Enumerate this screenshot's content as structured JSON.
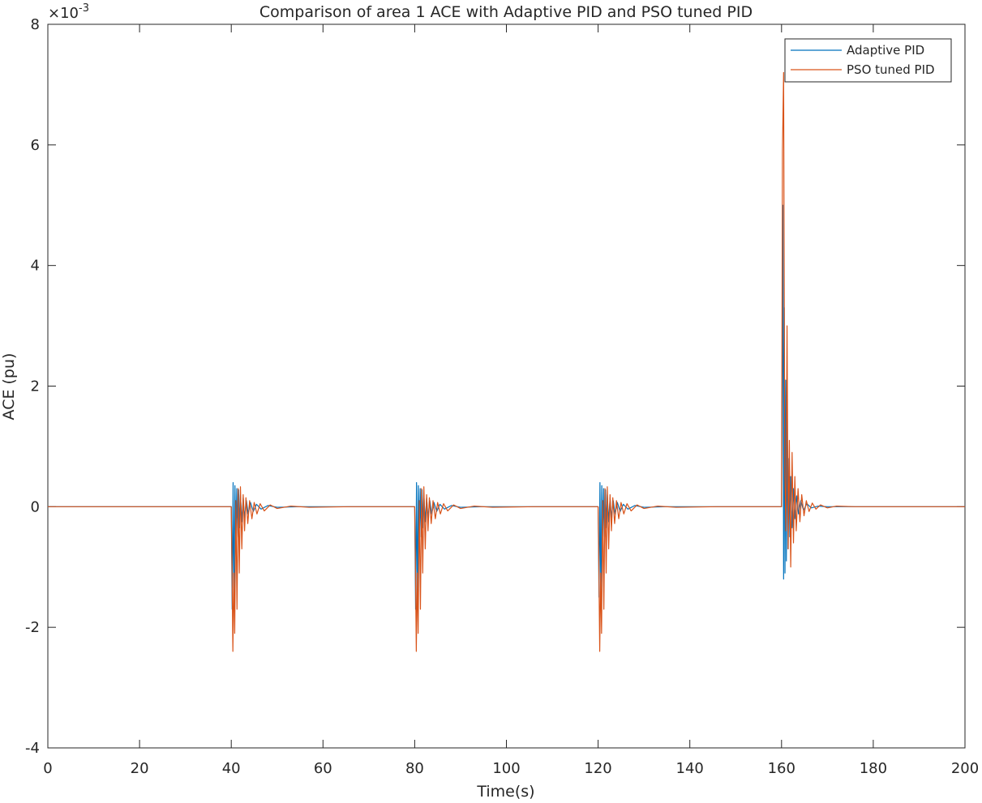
{
  "chart_data": {
    "type": "line",
    "title": "Comparison of area 1 ACE with Adaptive PID and PSO tuned PID",
    "xlabel": "Time(s)",
    "ylabel": "ACE (pu)",
    "y_exponent_label": "×10",
    "y_exponent": "-3",
    "xlim": [
      0,
      200
    ],
    "ylim": [
      -0.004,
      0.008
    ],
    "xticks": [
      "0",
      "20",
      "40",
      "60",
      "80",
      "100",
      "120",
      "140",
      "160",
      "180",
      "200"
    ],
    "yticks": [
      "-4",
      "-2",
      "0",
      "2",
      "4",
      "6",
      "8"
    ],
    "legend_position": "top-right",
    "grid": false,
    "series": [
      {
        "name": "Adaptive PID",
        "color": "#0072BD",
        "x": [
          0,
          40,
          40.2,
          40.4,
          40.6,
          40.8,
          41.0,
          41.2,
          41.4,
          41.6,
          41.8,
          42.0,
          42.3,
          42.6,
          42.9,
          43.3,
          43.7,
          44.2,
          44.8,
          45.5,
          46.5,
          48,
          50,
          55,
          66,
          80,
          80.2,
          80.4,
          80.6,
          80.8,
          81.0,
          81.2,
          81.4,
          81.6,
          81.8,
          82.0,
          82.3,
          82.6,
          82.9,
          83.3,
          83.7,
          84.2,
          84.8,
          85.5,
          86.5,
          88,
          90,
          95,
          106,
          120,
          120.2,
          120.4,
          120.6,
          120.8,
          121.0,
          121.2,
          121.4,
          121.6,
          121.8,
          122.0,
          122.3,
          122.6,
          122.9,
          123.3,
          123.7,
          124.2,
          124.8,
          125.5,
          126.5,
          128,
          130,
          135,
          146,
          160,
          160.15,
          160.3,
          160.45,
          160.6,
          160.75,
          160.9,
          161.05,
          161.2,
          161.4,
          161.6,
          161.8,
          162.0,
          162.3,
          162.6,
          162.9,
          163.3,
          163.7,
          164.2,
          164.8,
          165.5,
          166.5,
          168,
          170,
          175,
          188,
          200
        ],
        "y": [
          0,
          0,
          -0.0017,
          0.0004,
          -0.0016,
          0.00035,
          -0.0007,
          0.0003,
          -0.0005,
          0.00028,
          -0.00035,
          0.0002,
          -0.00025,
          0.00015,
          -0.00018,
          0.0001,
          -0.00012,
          7e-05,
          -8e-05,
          4e-05,
          -4e-05,
          2e-05,
          -1e-05,
          0,
          0,
          0,
          -0.0017,
          0.0004,
          -0.0016,
          0.00035,
          -0.0007,
          0.0003,
          -0.0005,
          0.00028,
          -0.00035,
          0.0002,
          -0.00025,
          0.00015,
          -0.00018,
          0.0001,
          -0.00012,
          7e-05,
          -8e-05,
          4e-05,
          -4e-05,
          2e-05,
          -1e-05,
          0,
          0,
          0,
          -0.0015,
          0.0004,
          -0.0016,
          0.00035,
          -0.0007,
          0.0003,
          -0.0005,
          0.00028,
          -0.00035,
          0.0002,
          -0.00025,
          0.00015,
          -0.00018,
          0.0001,
          -0.00012,
          7e-05,
          -8e-05,
          4e-05,
          -4e-05,
          2e-05,
          -1e-05,
          0,
          0,
          0,
          0.0022,
          0.005,
          -0.0012,
          0.0033,
          -0.0011,
          0.0021,
          -0.0009,
          0.0015,
          -0.0007,
          0.0008,
          -0.0005,
          0.0005,
          -0.00035,
          0.0003,
          -0.0002,
          0.00018,
          -0.00012,
          0.0001,
          -6e-05,
          5e-05,
          -2e-05,
          1e-05,
          0,
          0,
          0,
          0
        ]
      },
      {
        "name": "PSO tuned PID",
        "color": "#D95319",
        "x": [
          0,
          40,
          40.15,
          40.35,
          40.55,
          40.75,
          41.0,
          41.25,
          41.5,
          41.75,
          42.0,
          42.3,
          42.6,
          42.9,
          43.2,
          43.6,
          44.0,
          44.5,
          45.0,
          45.6,
          46.3,
          47.2,
          48.5,
          50,
          53,
          57,
          66,
          80,
          80.15,
          80.35,
          80.55,
          80.75,
          81.0,
          81.25,
          81.5,
          81.75,
          82.0,
          82.3,
          82.6,
          82.9,
          83.2,
          83.6,
          84.0,
          84.5,
          85.0,
          85.6,
          86.3,
          87.2,
          88.5,
          90,
          93,
          97,
          106,
          120,
          120.15,
          120.35,
          120.55,
          120.75,
          121.0,
          121.25,
          121.5,
          121.75,
          122.0,
          122.3,
          122.6,
          122.9,
          123.2,
          123.6,
          124.0,
          124.5,
          125.0,
          125.6,
          126.3,
          127.2,
          128.5,
          130,
          133,
          137,
          146,
          160,
          160.2,
          160.45,
          160.7,
          160.95,
          161.2,
          161.45,
          161.7,
          162.0,
          162.3,
          162.6,
          162.9,
          163.2,
          163.6,
          164.0,
          164.4,
          164.9,
          165.4,
          166.0,
          166.7,
          167.5,
          168.5,
          170,
          172,
          176,
          188,
          200
        ],
        "y": [
          0,
          0,
          -0.0009,
          -0.0024,
          -0.0011,
          -0.0021,
          0.0001,
          -0.0017,
          0.0003,
          -0.0011,
          0.00033,
          -0.0007,
          0.0002,
          -0.0004,
          0.00015,
          -0.00028,
          0.0001,
          -0.0002,
          7e-05,
          -0.00012,
          5e-05,
          -7e-05,
          3e-05,
          -3e-05,
          1e-05,
          -1e-05,
          0,
          0,
          -0.0009,
          -0.0024,
          -0.0011,
          -0.0021,
          0.0001,
          -0.0017,
          0.0003,
          -0.0011,
          0.00033,
          -0.0007,
          0.0002,
          -0.0004,
          0.00015,
          -0.00028,
          0.0001,
          -0.0002,
          7e-05,
          -0.00012,
          5e-05,
          -7e-05,
          3e-05,
          -3e-05,
          1e-05,
          -1e-05,
          0,
          0,
          -0.0009,
          -0.0024,
          -0.0011,
          -0.0021,
          0.0001,
          -0.0017,
          0.0003,
          -0.0011,
          0.00033,
          -0.0007,
          0.0002,
          -0.0004,
          0.00015,
          -0.00028,
          0.0001,
          -0.0002,
          7e-05,
          -0.00012,
          5e-05,
          -7e-05,
          3e-05,
          -3e-05,
          1e-05,
          -1e-05,
          0,
          0,
          0.0059,
          0.0072,
          0.0006,
          -0.0004,
          0.003,
          -0.0007,
          0.0011,
          -0.001,
          0.0009,
          -0.0006,
          0.0005,
          -0.0004,
          0.0003,
          -0.00025,
          0.0002,
          -0.00015,
          0.0001,
          -8e-05,
          6e-05,
          -4e-05,
          3e-05,
          -2e-05,
          1e-05,
          0,
          0,
          0
        ]
      }
    ]
  }
}
